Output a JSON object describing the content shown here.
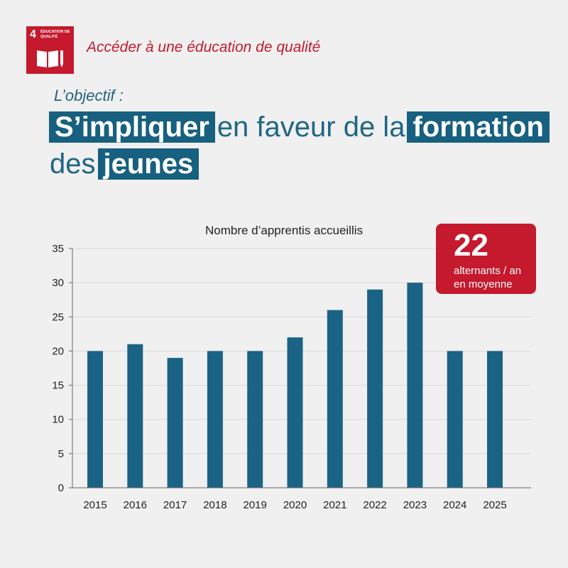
{
  "sdg": {
    "number": "4",
    "label": "Éducation de qualité",
    "title": "Accéder à une éducation de qualité",
    "icon": "book-pencil-icon",
    "color": "#c5192d"
  },
  "objective": {
    "kicker": "L’objectif :",
    "line1": {
      "hl1": "S’impliquer",
      "text": "en faveur de la",
      "hl2": "formation"
    },
    "line2": {
      "text": "des",
      "hl": "jeunes"
    }
  },
  "callout": {
    "number": "22",
    "line1": "alternants / an",
    "line2": "en moyenne"
  },
  "chart_data": {
    "type": "bar",
    "title": "Nombre d’apprentis accueillis",
    "categories": [
      "2015",
      "2016",
      "2017",
      "2018",
      "2019",
      "2020",
      "2021",
      "2022",
      "2023",
      "2024",
      "2025"
    ],
    "values": [
      20,
      21,
      19,
      20,
      20,
      22,
      26,
      29,
      30,
      20,
      20
    ],
    "ylim": [
      0,
      35
    ],
    "yticks": [
      0,
      5,
      10,
      15,
      20,
      25,
      30,
      35
    ],
    "xlabel": "",
    "ylabel": "",
    "grid": true,
    "bar_color": "#1b6384"
  }
}
